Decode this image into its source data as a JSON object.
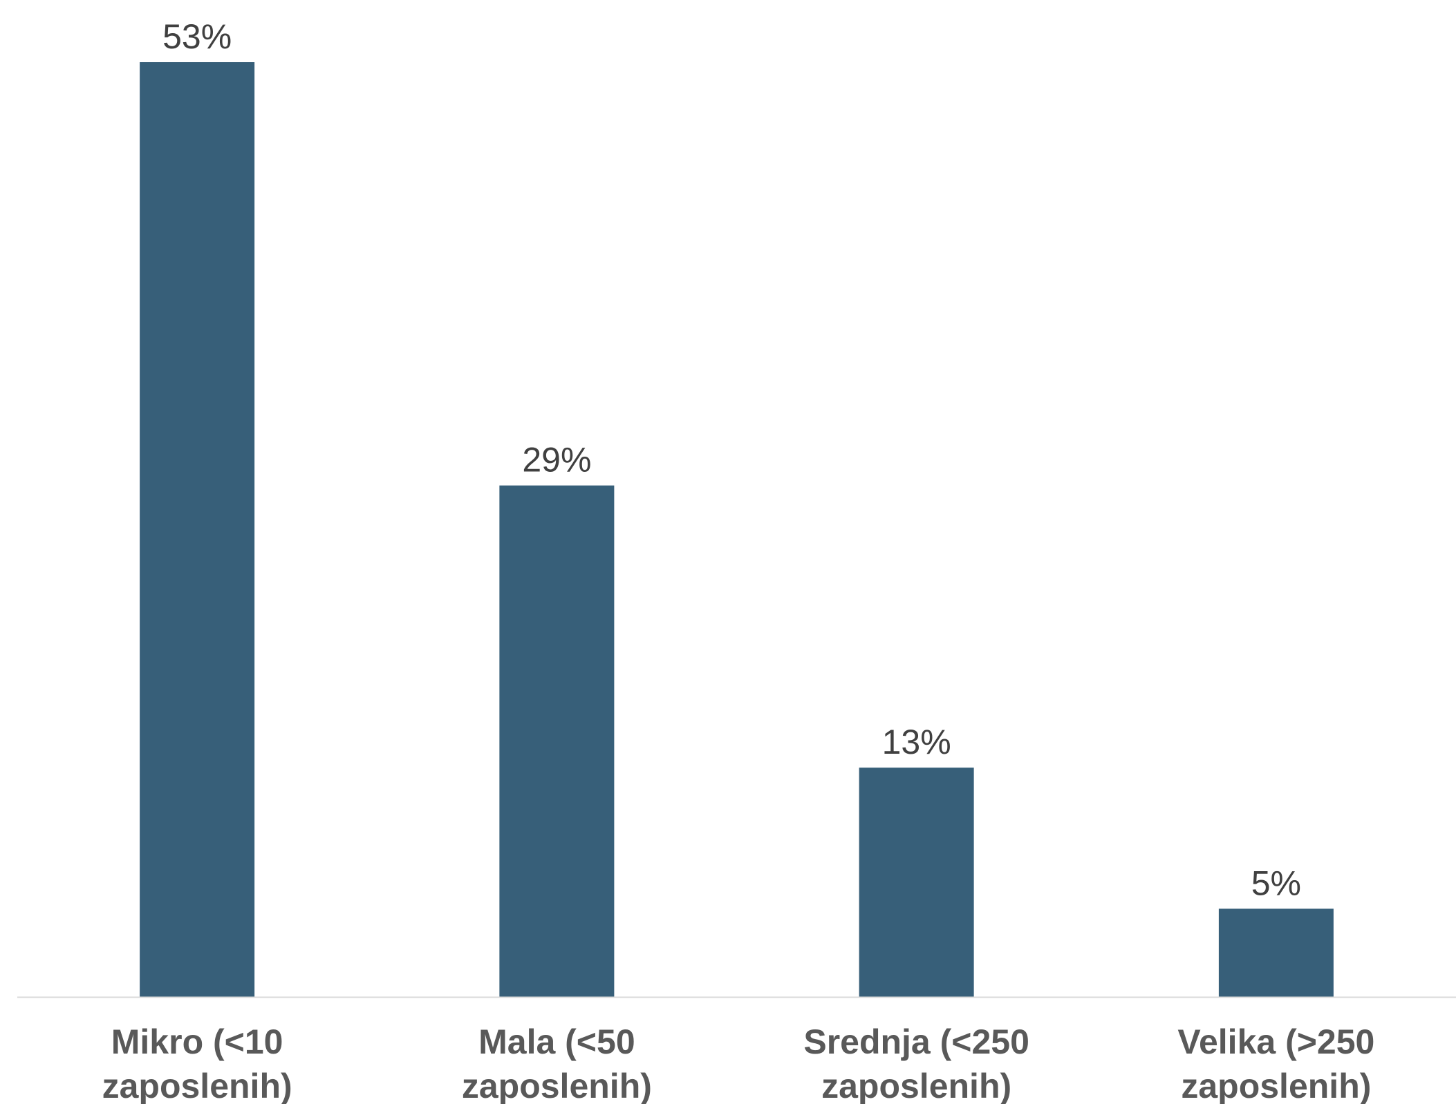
{
  "chart_data": {
    "type": "bar",
    "categories": [
      [
        "Mikro (<10",
        "zaposlenih)"
      ],
      [
        "Mala (<50",
        "zaposlenih)"
      ],
      [
        "Srednja (<250",
        "zaposlenih)"
      ],
      [
        "Velika (>250",
        "zaposlenih)"
      ]
    ],
    "values": [
      53,
      29,
      13,
      5
    ],
    "value_labels": [
      "53%",
      "29%",
      "13%",
      "5%"
    ],
    "unit": "%",
    "ylim": [
      0,
      53
    ],
    "grid": false,
    "legend": "none",
    "colors": {
      "bar": "#375F79",
      "axis": "#D9D9D9",
      "value_text": "#404040",
      "category_text": "#595959"
    }
  }
}
